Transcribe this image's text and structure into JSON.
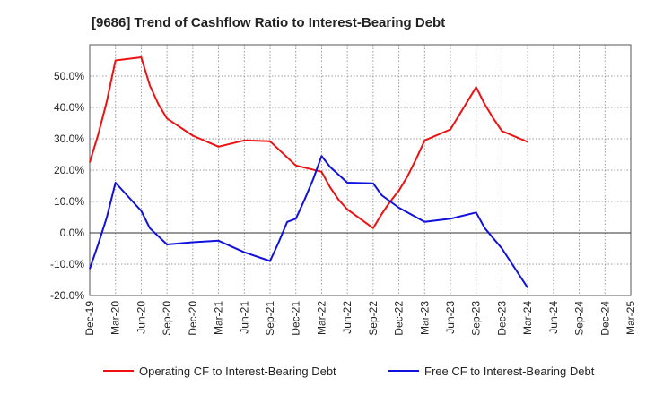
{
  "chart_data": {
    "type": "line",
    "title": "[9686]  Trend of Cashflow Ratio to Interest-Bearing Debt",
    "xlabel": "",
    "ylabel": "",
    "ylim": [
      -20,
      60
    ],
    "yticks": [
      -20,
      -10,
      0,
      10,
      20,
      30,
      40,
      50
    ],
    "ytick_labels": [
      "-20.0%",
      "-10.0%",
      "0.0%",
      "10.0%",
      "20.0%",
      "30.0%",
      "40.0%",
      "50.0%"
    ],
    "x": [
      "Dec-19",
      "Jan-20",
      "Feb-20",
      "Mar-20",
      "Apr-20",
      "May-20",
      "Jun-20",
      "Jul-20",
      "Aug-20",
      "Sep-20",
      "Oct-20",
      "Nov-20",
      "Dec-20",
      "Jan-21",
      "Feb-21",
      "Mar-21",
      "Apr-21",
      "May-21",
      "Jun-21",
      "Jul-21",
      "Aug-21",
      "Sep-21",
      "Oct-21",
      "Nov-21",
      "Dec-21",
      "Jan-22",
      "Feb-22",
      "Mar-22",
      "Apr-22",
      "May-22",
      "Jun-22",
      "Jul-22",
      "Aug-22",
      "Sep-22",
      "Oct-22",
      "Nov-22",
      "Dec-22",
      "Jan-23",
      "Feb-23",
      "Mar-23",
      "Apr-23",
      "May-23",
      "Jun-23",
      "Jul-23",
      "Aug-23",
      "Sep-23",
      "Oct-23",
      "Nov-23",
      "Dec-23",
      "Jan-24",
      "Feb-24",
      "Mar-24",
      "Apr-24",
      "May-24",
      "Jun-24",
      "Jul-24",
      "Aug-24",
      "Sep-24",
      "Oct-24",
      "Nov-24",
      "Dec-24",
      "Jan-25",
      "Feb-25",
      "Mar-25"
    ],
    "xtick_labels": [
      "Dec-19",
      "Mar-20",
      "Jun-20",
      "Sep-20",
      "Dec-20",
      "Mar-21",
      "Jun-21",
      "Sep-21",
      "Dec-21",
      "Mar-22",
      "Jun-22",
      "Sep-22",
      "Dec-22",
      "Mar-23",
      "Jun-23",
      "Sep-23",
      "Dec-23",
      "Mar-24",
      "Jun-24",
      "Sep-24",
      "Dec-24",
      "Mar-25"
    ],
    "grid": true,
    "legend_position": "bottom",
    "series": [
      {
        "name": "Operating CF to Interest-Bearing Debt",
        "color": "#ee1111",
        "points": [
          [
            "Dec-19",
            22.5
          ],
          [
            "Jan-20",
            31.5
          ],
          [
            "Feb-20",
            42
          ],
          [
            "Mar-20",
            55
          ],
          [
            "Jun-20",
            56
          ],
          [
            "Jul-20",
            47
          ],
          [
            "Aug-20",
            41
          ],
          [
            "Sep-20",
            36.5
          ],
          [
            "Dec-20",
            31
          ],
          [
            "Mar-21",
            27.5
          ],
          [
            "Jun-21",
            29.5
          ],
          [
            "Sep-21",
            29.2
          ],
          [
            "Dec-21",
            21.5
          ],
          [
            "Mar-22",
            19.5
          ],
          [
            "Apr-22",
            14.5
          ],
          [
            "May-22",
            10.5
          ],
          [
            "Jun-22",
            7.5
          ],
          [
            "Sep-22",
            1.5
          ],
          [
            "Oct-22",
            6
          ],
          [
            "Nov-22",
            10
          ],
          [
            "Dec-22",
            13.5
          ],
          [
            "Jan-23",
            18
          ],
          [
            "Feb-23",
            23.5
          ],
          [
            "Mar-23",
            29.5
          ],
          [
            "Jun-23",
            33
          ],
          [
            "Sep-23",
            46.5
          ],
          [
            "Oct-23",
            41
          ],
          [
            "Nov-23",
            36.5
          ],
          [
            "Dec-23",
            32.5
          ],
          [
            "Mar-24",
            29
          ]
        ]
      },
      {
        "name": "Free CF to Interest-Bearing Debt",
        "color": "#1111dd",
        "points": [
          [
            "Dec-19",
            -11.5
          ],
          [
            "Jan-20",
            -3.5
          ],
          [
            "Feb-20",
            5
          ],
          [
            "Mar-20",
            16
          ],
          [
            "Jun-20",
            7
          ],
          [
            "Jul-20",
            1.5
          ],
          [
            "Sep-20",
            -3.7
          ],
          [
            "Dec-20",
            -3
          ],
          [
            "Mar-21",
            -2.5
          ],
          [
            "Jun-21",
            -6.2
          ],
          [
            "Sep-21",
            -9
          ],
          [
            "Oct-21",
            -3
          ],
          [
            "Nov-21",
            3.5
          ],
          [
            "Dec-21",
            4.5
          ],
          [
            "Jan-22",
            10.5
          ],
          [
            "Feb-22",
            17
          ],
          [
            "Mar-22",
            24.5
          ],
          [
            "Apr-22",
            21
          ],
          [
            "Jun-22",
            16
          ],
          [
            "Sep-22",
            15.8
          ],
          [
            "Oct-22",
            12
          ],
          [
            "Dec-22",
            8
          ],
          [
            "Mar-23",
            3.5
          ],
          [
            "Jun-23",
            4.5
          ],
          [
            "Sep-23",
            6.5
          ],
          [
            "Oct-23",
            1.5
          ],
          [
            "Dec-23",
            -5
          ],
          [
            "Mar-24",
            -17.5
          ]
        ]
      }
    ]
  }
}
